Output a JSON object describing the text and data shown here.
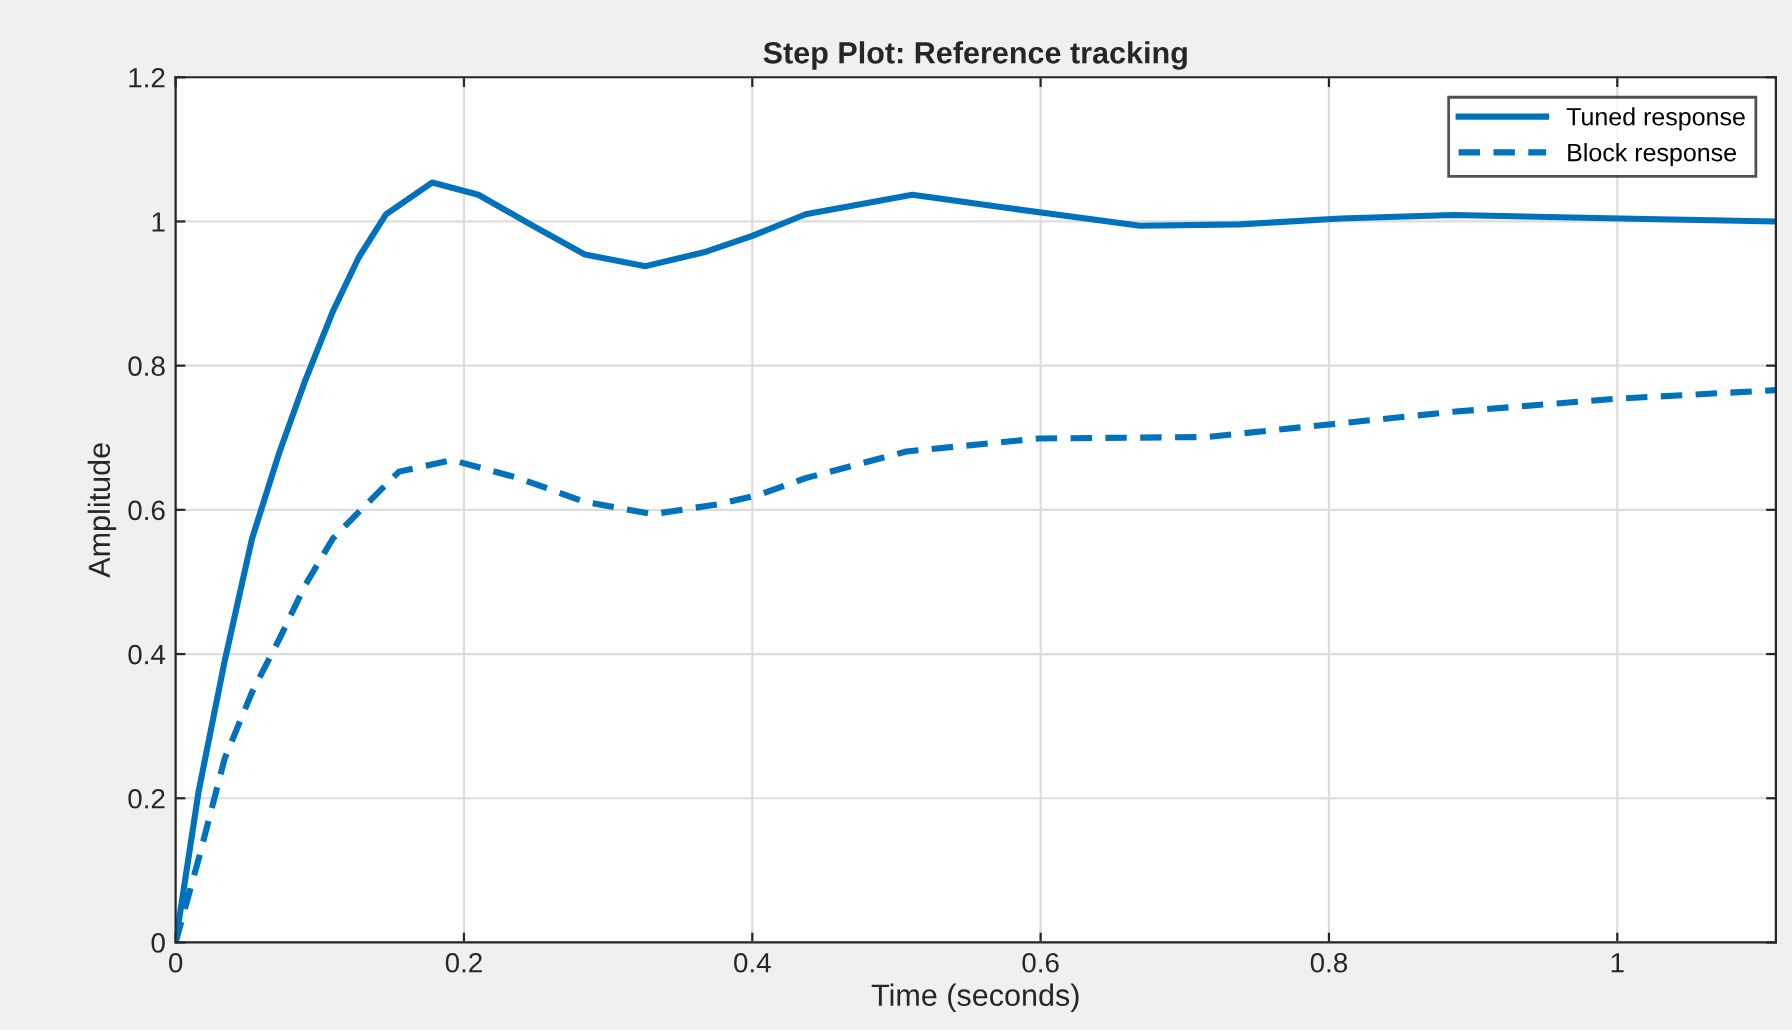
{
  "chart_data": {
    "type": "line",
    "title": "Step Plot: Reference tracking",
    "xlabel": "Time (seconds)",
    "ylabel": "Amplitude",
    "xlim": [
      0,
      1.11
    ],
    "ylim": [
      0,
      1.2
    ],
    "xticks": [
      0,
      0.2,
      0.4,
      0.6,
      0.8,
      1
    ],
    "yticks": [
      0,
      0.2,
      0.4,
      0.6,
      0.8,
      1,
      1.2
    ],
    "grid": true,
    "legend": "top right",
    "marker": "none",
    "series": [
      {
        "name": "Tuned response",
        "color": "#0072bd",
        "line_style": "solid",
        "x": [
          0,
          0.016,
          0.034,
          0.053,
          0.072,
          0.09,
          0.109,
          0.127,
          0.146,
          0.178,
          0.21,
          0.247,
          0.284,
          0.326,
          0.368,
          0.4,
          0.437,
          0.511,
          0.576,
          0.669,
          0.738,
          0.808,
          0.886,
          1.002,
          1.11
        ],
        "values": [
          0,
          0.21,
          0.39,
          0.56,
          0.68,
          0.78,
          0.875,
          0.95,
          1.01,
          1.054,
          1.037,
          0.995,
          0.954,
          0.938,
          0.958,
          0.98,
          1.01,
          1.037,
          1.019,
          0.994,
          0.996,
          1.004,
          1.009,
          1.004,
          1.0
        ]
      },
      {
        "name": "Block response",
        "color": "#0072bd",
        "line_style": "dashed",
        "x": [
          0,
          0.016,
          0.034,
          0.053,
          0.072,
          0.09,
          0.109,
          0.127,
          0.155,
          0.192,
          0.238,
          0.284,
          0.331,
          0.377,
          0.405,
          0.437,
          0.507,
          0.599,
          0.715,
          0.798,
          0.886,
          0.998,
          1.11
        ],
        "values": [
          0,
          0.116,
          0.255,
          0.347,
          0.421,
          0.496,
          0.56,
          0.597,
          0.653,
          0.669,
          0.644,
          0.611,
          0.594,
          0.608,
          0.621,
          0.644,
          0.681,
          0.699,
          0.701,
          0.718,
          0.736,
          0.754,
          0.766
        ]
      }
    ]
  }
}
